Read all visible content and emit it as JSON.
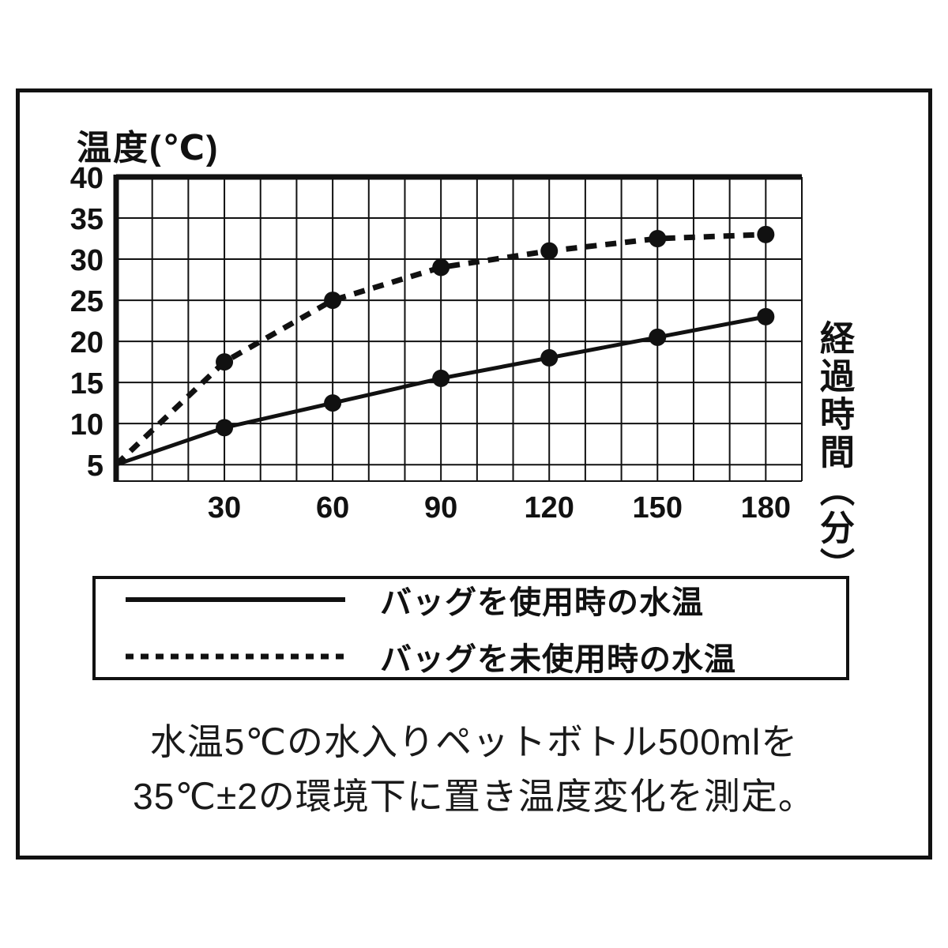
{
  "chart_data": {
    "type": "line",
    "title": "",
    "x": [
      0,
      30,
      60,
      90,
      120,
      150,
      180
    ],
    "series": [
      {
        "name": "バッグを使用時の水温",
        "style": "solid",
        "values": [
          5,
          9.5,
          12.5,
          15.5,
          18,
          20.5,
          23
        ]
      },
      {
        "name": "バッグを未使用時の水温",
        "style": "dashed",
        "values": [
          5,
          17.5,
          25,
          29,
          31,
          32.5,
          33
        ]
      }
    ],
    "ylabel": "温度(℃)",
    "xlabel": "経過時間（分）",
    "xlim": [
      0,
      190
    ],
    "ylim": [
      3,
      40
    ],
    "xticks": [
      30,
      60,
      90,
      120,
      150,
      180
    ],
    "yticks": [
      5,
      10,
      15,
      20,
      25,
      30,
      35,
      40
    ],
    "grid": true,
    "grid_step_x": 10,
    "grid_step_y": 5,
    "legend_position": "below",
    "line_color": "#111111"
  },
  "legend": {
    "items": [
      {
        "label": "バッグを使用時の水温",
        "style": "solid"
      },
      {
        "label": "バッグを未使用時の水温",
        "style": "dashed"
      }
    ]
  },
  "caption": {
    "line1": "水温5℃の水入りペットボトル500mlを",
    "line2": "35℃±2の環境下に置き温度変化を測定。"
  }
}
